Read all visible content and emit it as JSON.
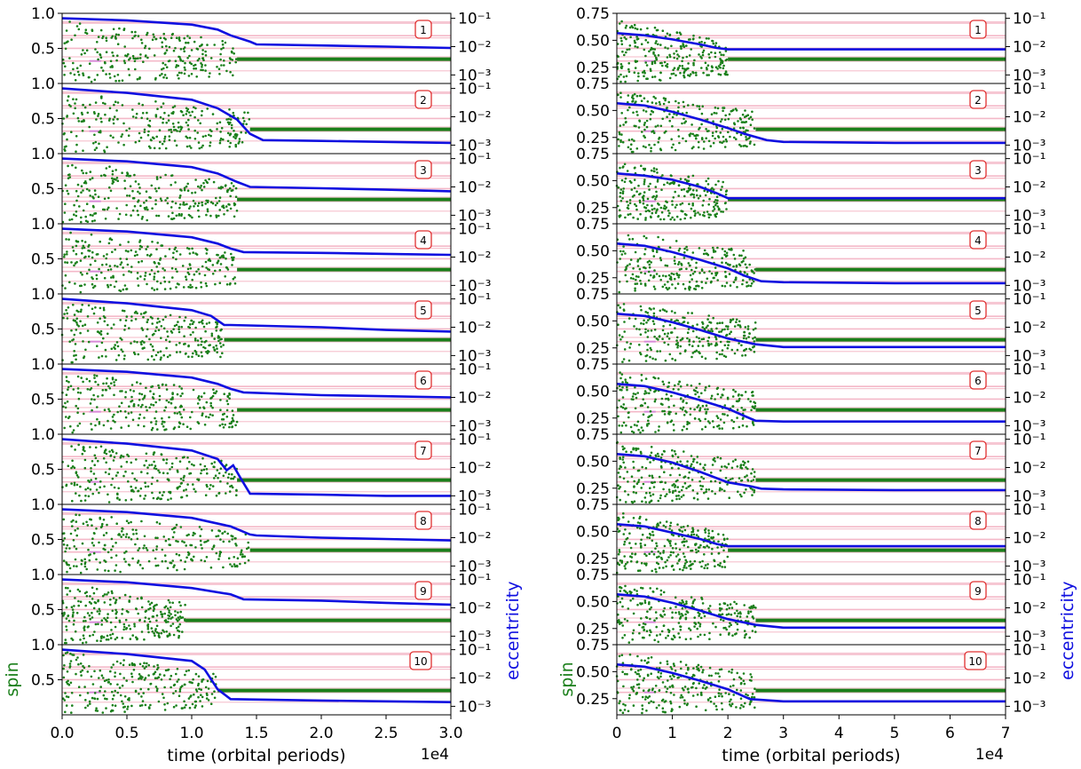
{
  "colors": {
    "spin": "#1a7f1a",
    "eccentricity": "#1010e0",
    "reference": "#f4b8c8",
    "reference_alt": "#d88ad8",
    "tag_border": "#e03030"
  },
  "chart_data": [
    {
      "type": "line",
      "panel": "left",
      "xlabel": "time (orbital periods)",
      "x_offset_label": "1e4",
      "xlim": [
        0,
        3.0
      ],
      "xticks": [
        "0.0",
        "0.5",
        "1.0",
        "1.5",
        "2.0",
        "2.5",
        "3.0"
      ],
      "left_ylabel": "spin",
      "right_ylabel": "eccentricity",
      "spin_ylim": [
        0,
        1.0
      ],
      "spin_ticks": [
        "1.0",
        "0.5"
      ],
      "ecc_scale": "log",
      "ecc_ylim": [
        0.0005,
        0.15
      ],
      "ecc_ticks": [
        "10⁻¹",
        "10⁻²",
        "10⁻³"
      ],
      "legend": "none",
      "reference_spins": [
        0.3,
        0.5,
        0.7,
        0.9
      ],
      "series": [
        {
          "tag": "1",
          "spin_chaos": [
            0.1,
            1.35
          ],
          "spin_final": 0.3,
          "ecc": {
            "x": [
              0,
              0.5,
              1.0,
              1.2,
              1.3,
              1.45,
              1.5,
              2.0,
              2.5,
              3.0
            ],
            "y": [
              0.1,
              0.085,
              0.06,
              0.04,
              0.025,
              0.015,
              0.012,
              0.011,
              0.01,
              0.009
            ]
          }
        },
        {
          "tag": "2",
          "spin_chaos": [
            0.1,
            1.45
          ],
          "spin_final": 0.3,
          "ecc": {
            "x": [
              0,
              0.5,
              1.0,
              1.2,
              1.35,
              1.45,
              1.55,
              2.0,
              2.5,
              3.0
            ],
            "y": [
              0.1,
              0.07,
              0.04,
              0.02,
              0.008,
              0.0025,
              0.0015,
              0.0014,
              0.0013,
              0.0012
            ]
          }
        },
        {
          "tag": "3",
          "spin_chaos": [
            0.1,
            1.35
          ],
          "spin_final": 0.3,
          "ecc": {
            "x": [
              0,
              0.5,
              1.0,
              1.2,
              1.35,
              1.45,
              2.0,
              2.5,
              3.0
            ],
            "y": [
              0.1,
              0.08,
              0.05,
              0.03,
              0.015,
              0.01,
              0.009,
              0.008,
              0.007
            ]
          }
        },
        {
          "tag": "4",
          "spin_chaos": [
            0.1,
            1.35
          ],
          "spin_final": 0.3,
          "ecc": {
            "x": [
              0,
              0.5,
              1.0,
              1.2,
              1.3,
              1.4,
              2.0,
              2.5,
              3.0
            ],
            "y": [
              0.1,
              0.08,
              0.05,
              0.03,
              0.02,
              0.015,
              0.014,
              0.013,
              0.012
            ]
          }
        },
        {
          "tag": "5",
          "spin_chaos": [
            0.1,
            1.25
          ],
          "spin_final": 0.3,
          "ecc": {
            "x": [
              0,
              0.5,
              1.0,
              1.15,
              1.25,
              1.3,
              2.0,
              2.5,
              3.0
            ],
            "y": [
              0.1,
              0.07,
              0.04,
              0.025,
              0.012,
              0.012,
              0.01,
              0.008,
              0.007
            ]
          }
        },
        {
          "tag": "6",
          "spin_chaos": [
            0.1,
            1.35
          ],
          "spin_final": 0.3,
          "ecc": {
            "x": [
              0,
              0.5,
              1.0,
              1.2,
              1.3,
              1.4,
              2.0,
              2.5,
              3.0
            ],
            "y": [
              0.1,
              0.08,
              0.05,
              0.03,
              0.02,
              0.015,
              0.012,
              0.011,
              0.01
            ]
          }
        },
        {
          "tag": "7",
          "spin_chaos": [
            0.1,
            1.35
          ],
          "spin_final": 0.3,
          "ecc": {
            "x": [
              0,
              0.5,
              1.0,
              1.2,
              1.27,
              1.32,
              1.38,
              1.45,
              2.0,
              2.5,
              3.0
            ],
            "y": [
              0.1,
              0.07,
              0.04,
              0.02,
              0.008,
              0.012,
              0.004,
              0.0012,
              0.0011,
              0.001,
              0.001
            ]
          }
        },
        {
          "tag": "8",
          "spin_chaos": [
            0.1,
            1.45
          ],
          "spin_final": 0.3,
          "ecc": {
            "x": [
              0,
              0.5,
              1.0,
              1.3,
              1.45,
              1.5,
              2.0,
              2.5,
              3.0
            ],
            "y": [
              0.1,
              0.08,
              0.05,
              0.025,
              0.013,
              0.012,
              0.01,
              0.009,
              0.008
            ]
          }
        },
        {
          "tag": "9",
          "spin_chaos": [
            0.1,
            0.95
          ],
          "spin_final": 0.3,
          "ecc": {
            "x": [
              0,
              0.5,
              1.0,
              1.3,
              1.4,
              2.0,
              2.5,
              3.0
            ],
            "y": [
              0.1,
              0.08,
              0.05,
              0.03,
              0.02,
              0.018,
              0.015,
              0.013
            ]
          }
        },
        {
          "tag": "10",
          "spin_chaos": [
            0.1,
            1.2
          ],
          "spin_final": 0.3,
          "ecc": {
            "x": [
              0,
              0.5,
              1.0,
              1.1,
              1.2,
              1.3,
              2.0,
              2.5,
              3.0
            ],
            "y": [
              0.1,
              0.07,
              0.04,
              0.02,
              0.004,
              0.0018,
              0.0016,
              0.0015,
              0.0014
            ]
          }
        }
      ]
    },
    {
      "type": "line",
      "panel": "right",
      "xlabel": "time (orbital periods)",
      "x_offset_label": "1e4",
      "xlim": [
        0,
        7
      ],
      "xticks": [
        "0",
        "1",
        "2",
        "3",
        "4",
        "5",
        "6",
        "7"
      ],
      "left_ylabel": "spin",
      "right_ylabel": "eccentricity",
      "spin_ylim": [
        0.1,
        0.75
      ],
      "spin_ticks": [
        "0.75",
        "0.50",
        "0.25"
      ],
      "ecc_scale": "log",
      "ecc_ylim": [
        0.0005,
        0.15
      ],
      "ecc_ticks": [
        "10⁻¹",
        "10⁻²",
        "10⁻³"
      ],
      "legend": "none",
      "reference_spins": [
        0.3,
        0.5,
        0.7,
        0.9
      ],
      "series": [
        {
          "tag": "1",
          "spin_chaos": [
            0.1,
            2.0
          ],
          "spin_final": 0.3,
          "ecc": {
            "x": [
              0,
              0.5,
              1.0,
              1.5,
              1.8,
              2.0,
              3,
              5,
              7
            ],
            "y": [
              0.03,
              0.025,
              0.018,
              0.012,
              0.009,
              0.008,
              0.008,
              0.008,
              0.008
            ]
          }
        },
        {
          "tag": "2",
          "spin_chaos": [
            0.1,
            2.5
          ],
          "spin_final": 0.3,
          "ecc": {
            "x": [
              0,
              0.5,
              1.0,
              1.5,
              2.0,
              2.3,
              2.7,
              3,
              5,
              7
            ],
            "y": [
              0.03,
              0.025,
              0.015,
              0.008,
              0.004,
              0.0025,
              0.0015,
              0.0013,
              0.0012,
              0.0012
            ]
          }
        },
        {
          "tag": "3",
          "spin_chaos": [
            0.1,
            2.0
          ],
          "spin_final": 0.3,
          "ecc": {
            "x": [
              0,
              0.5,
              1.0,
              1.5,
              1.8,
              2.0,
              3,
              5,
              7
            ],
            "y": [
              0.03,
              0.025,
              0.018,
              0.01,
              0.006,
              0.004,
              0.004,
              0.004,
              0.004
            ]
          }
        },
        {
          "tag": "4",
          "spin_chaos": [
            0.1,
            2.5
          ],
          "spin_final": 0.3,
          "ecc": {
            "x": [
              0,
              0.5,
              1.0,
              1.5,
              2.0,
              2.3,
              2.6,
              3,
              5,
              7
            ],
            "y": [
              0.03,
              0.025,
              0.015,
              0.008,
              0.004,
              0.0022,
              0.0014,
              0.0013,
              0.0012,
              0.0012
            ]
          }
        },
        {
          "tag": "5",
          "spin_chaos": [
            0.1,
            2.5
          ],
          "spin_final": 0.3,
          "ecc": {
            "x": [
              0,
              0.5,
              1.0,
              1.5,
              2.0,
              2.5,
              3.0,
              5,
              7
            ],
            "y": [
              0.03,
              0.025,
              0.015,
              0.008,
              0.004,
              0.0025,
              0.002,
              0.002,
              0.002
            ]
          }
        },
        {
          "tag": "6",
          "spin_chaos": [
            0.1,
            2.5
          ],
          "spin_final": 0.3,
          "ecc": {
            "x": [
              0,
              0.5,
              1.0,
              1.5,
              2.0,
              2.3,
              2.5,
              3,
              5,
              7
            ],
            "y": [
              0.03,
              0.025,
              0.015,
              0.008,
              0.004,
              0.0022,
              0.0015,
              0.0014,
              0.0014,
              0.0014
            ]
          }
        },
        {
          "tag": "7",
          "spin_chaos": [
            0.1,
            2.5
          ],
          "spin_final": 0.3,
          "ecc": {
            "x": [
              0,
              0.5,
              1.0,
              1.5,
              2.0,
              2.4,
              2.6,
              3,
              5,
              7
            ],
            "y": [
              0.03,
              0.025,
              0.015,
              0.007,
              0.003,
              0.0022,
              0.0018,
              0.0017,
              0.0016,
              0.0016
            ]
          }
        },
        {
          "tag": "8",
          "spin_chaos": [
            0.1,
            2.0
          ],
          "spin_final": 0.3,
          "ecc": {
            "x": [
              0,
              0.5,
              1.0,
              1.5,
              1.8,
              2.0,
              3,
              5,
              7
            ],
            "y": [
              0.03,
              0.025,
              0.015,
              0.009,
              0.006,
              0.005,
              0.005,
              0.005,
              0.005
            ]
          }
        },
        {
          "tag": "9",
          "spin_chaos": [
            0.1,
            2.5
          ],
          "spin_final": 0.3,
          "ecc": {
            "x": [
              0,
              0.5,
              1.0,
              1.5,
              2.0,
              2.5,
              3,
              5,
              7
            ],
            "y": [
              0.03,
              0.025,
              0.015,
              0.008,
              0.004,
              0.0025,
              0.002,
              0.002,
              0.002
            ]
          }
        },
        {
          "tag": "10",
          "spin_chaos": [
            0.1,
            2.5
          ],
          "spin_final": 0.3,
          "ecc": {
            "x": [
              0,
              0.5,
              1.0,
              1.5,
              2.0,
              2.4,
              3,
              5,
              7
            ],
            "y": [
              0.03,
              0.025,
              0.015,
              0.008,
              0.004,
              0.0018,
              0.0015,
              0.0015,
              0.0015
            ]
          }
        }
      ]
    }
  ]
}
